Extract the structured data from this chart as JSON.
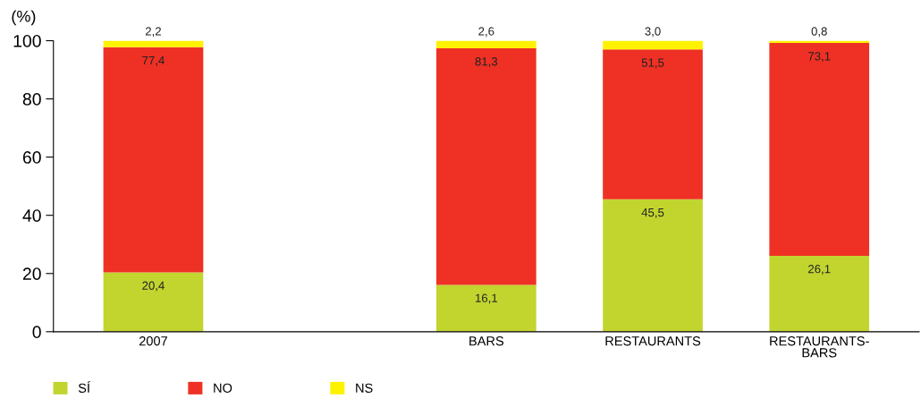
{
  "chart_data": {
    "type": "bar",
    "stacked": true,
    "ylabel": "(%)",
    "categories": [
      "2007",
      null,
      "BARS",
      "RESTAURANTS",
      "RESTAURANTS-\nBARS"
    ],
    "series": [
      {
        "name": "SÍ",
        "color": "#c2d52f",
        "values": [
          20.4,
          null,
          16.1,
          45.5,
          26.1
        ],
        "value_labels": [
          "20,4",
          null,
          "16,1",
          "45,5",
          "26,1"
        ]
      },
      {
        "name": "NO",
        "color": "#ee3124",
        "values": [
          77.4,
          null,
          81.3,
          51.5,
          73.1
        ],
        "value_labels": [
          "77,4",
          null,
          "81,3",
          "51,5",
          "73,1"
        ]
      },
      {
        "name": "NS",
        "color": "#fff200",
        "values": [
          2.2,
          null,
          2.6,
          3.0,
          0.8
        ],
        "value_labels": [
          "2,2",
          null,
          "2,6",
          "3,0",
          "0,8"
        ]
      }
    ],
    "ylim": [
      0,
      100
    ],
    "yticks": [
      0,
      20,
      40,
      60,
      80,
      100
    ],
    "grid": false,
    "legend": "bottom left"
  }
}
